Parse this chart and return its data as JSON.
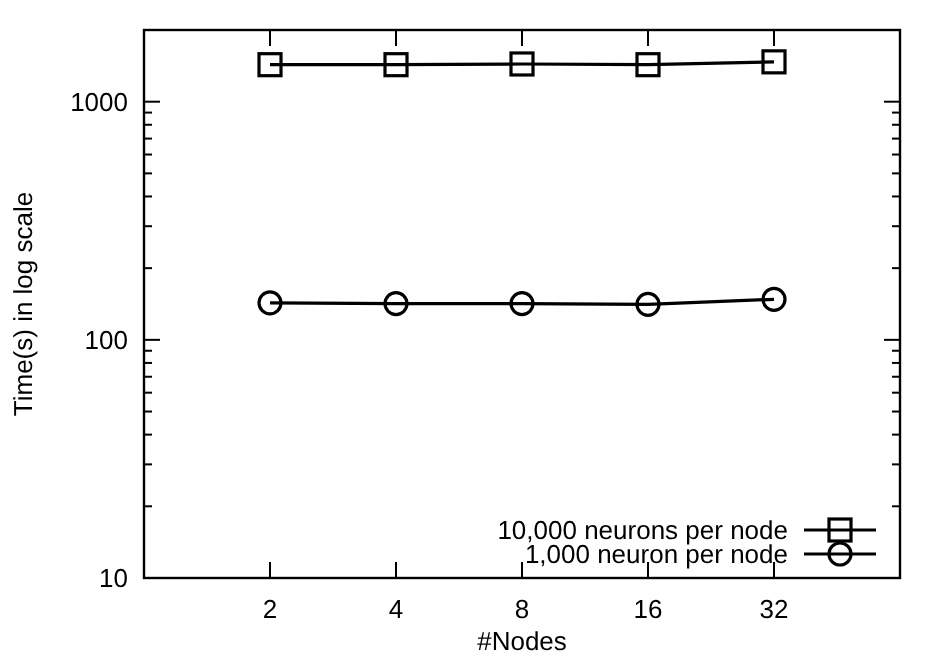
{
  "chart_data": {
    "type": "line",
    "xlabel": "#Nodes",
    "ylabel": "Time(s) in log scale",
    "categories": [
      "2",
      "4",
      "8",
      "16",
      "32"
    ],
    "log": true,
    "ylim": [
      10,
      2000
    ],
    "yticks": [
      10,
      {
        "value": 20,
        "label": null
      },
      {
        "value": 30,
        "label": null
      },
      {
        "value": 40,
        "label": null
      },
      {
        "value": 50,
        "label": null
      },
      {
        "value": 60,
        "label": null
      },
      {
        "value": 70,
        "label": null
      },
      {
        "value": 80,
        "label": null
      },
      {
        "value": 90,
        "label": null
      },
      100,
      {
        "value": 200,
        "label": null
      },
      {
        "value": 300,
        "label": null
      },
      {
        "value": 400,
        "label": null
      },
      {
        "value": 500,
        "label": null
      },
      {
        "value": 600,
        "label": null
      },
      {
        "value": 700,
        "label": null
      },
      {
        "value": 800,
        "label": null
      },
      {
        "value": 900,
        "label": null
      },
      1000,
      {
        "value": 2000,
        "label": null
      }
    ],
    "legend": "bottom right",
    "grid": false,
    "line_style": "solid",
    "series": [
      {
        "name": "10,000 neurons per node",
        "color": "#000000",
        "marker": "square",
        "values": [
          1430,
          1430,
          1440,
          1430,
          1470
        ]
      },
      {
        "name": "1,000 neuron per node",
        "color": "#000000",
        "marker": "circle",
        "values": [
          143,
          142,
          142,
          141,
          148
        ]
      }
    ]
  }
}
